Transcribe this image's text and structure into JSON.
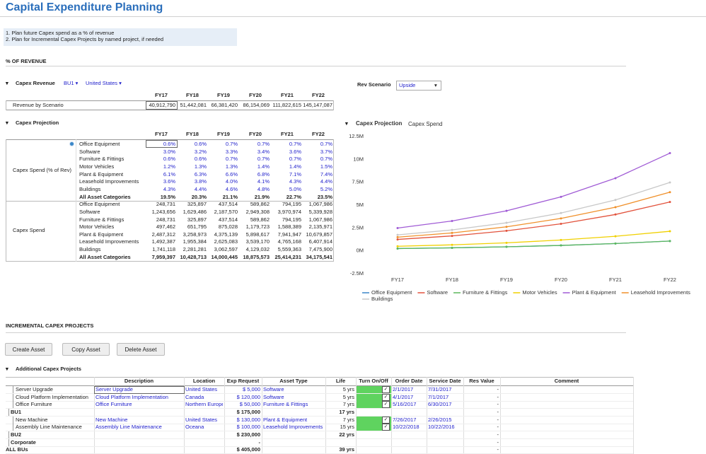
{
  "header": {
    "title": "Capital Expenditure Planning",
    "notes": [
      "1. Plan future Capex spend as a % of revenue",
      "2. Plan for Incremental Capex Projects by named project, if needed"
    ]
  },
  "pct_section": {
    "title": "% OF REVENUE"
  },
  "revenue": {
    "title": "Capex Revenue",
    "bu": "BU1",
    "region": "United States",
    "scenario_label": "Rev Scenario",
    "scenario": "Upside",
    "columns": [
      "FY17",
      "FY18",
      "FY19",
      "FY20",
      "FY21",
      "FY22"
    ],
    "rows": [
      {
        "label": "Revenue by Scenario",
        "values": [
          "40,912,790",
          "51,442,081",
          "66,381,420",
          "86,154,069",
          "111,822,615",
          "145,147,087"
        ]
      }
    ]
  },
  "projection": {
    "title": "Capex Projection",
    "columns": [
      "FY17",
      "FY18",
      "FY19",
      "FY20",
      "FY21",
      "FY22"
    ],
    "groups": [
      {
        "label": "Capex Spend (% of Rev)",
        "rows": [
          {
            "label": "Office Equipment",
            "values": [
              "0.6%",
              "0.6%",
              "0.7%",
              "0.7%",
              "0.7%",
              "0.7%"
            ]
          },
          {
            "label": "Software",
            "values": [
              "3.0%",
              "3.2%",
              "3.3%",
              "3.4%",
              "3.6%",
              "3.7%"
            ]
          },
          {
            "label": "Furniture & Fittings",
            "values": [
              "0.6%",
              "0.6%",
              "0.7%",
              "0.7%",
              "0.7%",
              "0.7%"
            ]
          },
          {
            "label": "Motor Vehicles",
            "values": [
              "1.2%",
              "1.3%",
              "1.3%",
              "1.4%",
              "1.4%",
              "1.5%"
            ]
          },
          {
            "label": "Plant & Equipment",
            "values": [
              "6.1%",
              "6.3%",
              "6.6%",
              "6.8%",
              "7.1%",
              "7.4%"
            ]
          },
          {
            "label": "Leasehold Improvements",
            "values": [
              "3.6%",
              "3.8%",
              "4.0%",
              "4.1%",
              "4.3%",
              "4.4%"
            ]
          },
          {
            "label": "Buildings",
            "values": [
              "4.3%",
              "4.4%",
              "4.6%",
              "4.8%",
              "5.0%",
              "5.2%"
            ]
          },
          {
            "label": "All Asset Categories",
            "values": [
              "19.5%",
              "20.3%",
              "21.1%",
              "21.9%",
              "22.7%",
              "23.5%"
            ]
          }
        ]
      },
      {
        "label": "Capex Spend",
        "rows": [
          {
            "label": "Office Equipment",
            "values": [
              "248,731",
              "325,897",
              "437,514",
              "589,862",
              "794,195",
              "1,067,986"
            ]
          },
          {
            "label": "Software",
            "values": [
              "1,243,656",
              "1,629,486",
              "2,187,570",
              "2,949,308",
              "3,970,974",
              "5,339,928"
            ]
          },
          {
            "label": "Furniture & Fittings",
            "values": [
              "248,731",
              "325,897",
              "437,514",
              "589,862",
              "794,195",
              "1,067,986"
            ]
          },
          {
            "label": "Motor Vehicles",
            "values": [
              "497,462",
              "651,795",
              "875,028",
              "1,179,723",
              "1,588,389",
              "2,135,971"
            ]
          },
          {
            "label": "Plant & Equipment",
            "values": [
              "2,487,312",
              "3,258,973",
              "4,375,139",
              "5,898,617",
              "7,941,947",
              "10,679,857"
            ]
          },
          {
            "label": "Leasehold Improvements",
            "values": [
              "1,492,387",
              "1,955,384",
              "2,625,083",
              "3,539,170",
              "4,765,168",
              "6,407,914"
            ]
          },
          {
            "label": "Buildings",
            "values": [
              "1,741,118",
              "2,281,281",
              "3,062,597",
              "4,129,032",
              "5,559,363",
              "7,475,900"
            ]
          },
          {
            "label": "All Asset Categories",
            "values": [
              "7,959,397",
              "10,428,713",
              "14,000,445",
              "18,875,573",
              "25,414,231",
              "34,175,541"
            ]
          }
        ]
      }
    ]
  },
  "chart_data": {
    "type": "line",
    "title": "Capex Projection",
    "subtitle": "Capex Spend",
    "categories": [
      "FY17",
      "FY18",
      "FY19",
      "FY20",
      "FY21",
      "FY22"
    ],
    "ylim": [
      -2500000,
      12500000
    ],
    "yticks": [
      {
        "value": -2500000,
        "label": "-2.5M"
      },
      {
        "value": 0,
        "label": "0M"
      },
      {
        "value": 2500000,
        "label": "2.5M"
      },
      {
        "value": 5000000,
        "label": "5M"
      },
      {
        "value": 7500000,
        "label": "7.5M"
      },
      {
        "value": 10000000,
        "label": "10M"
      },
      {
        "value": 12500000,
        "label": "12.5M"
      }
    ],
    "series": [
      {
        "name": "Office Equipment",
        "color": "#3a87c8",
        "values": [
          248731,
          325897,
          437514,
          589862,
          794195,
          1067986
        ]
      },
      {
        "name": "Software",
        "color": "#e2533d",
        "values": [
          1243656,
          1629486,
          2187570,
          2949308,
          3970974,
          5339928
        ]
      },
      {
        "name": "Furniture & Fittings",
        "color": "#5cb85c",
        "values": [
          248731,
          325897,
          437514,
          589862,
          794195,
          1067986
        ]
      },
      {
        "name": "Motor Vehicles",
        "color": "#f0d000",
        "values": [
          497462,
          651795,
          875028,
          1179723,
          1588389,
          2135971
        ]
      },
      {
        "name": "Plant & Equipment",
        "color": "#a05bd5",
        "values": [
          2487312,
          3258973,
          4375139,
          5898617,
          7941947,
          10679857
        ]
      },
      {
        "name": "Leasehold Improvements",
        "color": "#f0902a",
        "values": [
          1492387,
          1955384,
          2625083,
          3539170,
          4765168,
          6407914
        ]
      },
      {
        "name": "Buildings",
        "color": "#c8c8c8",
        "values": [
          1741118,
          2281281,
          3062597,
          4129032,
          5559363,
          7475900
        ]
      }
    ]
  },
  "incremental": {
    "title": "INCREMENTAL CAPEX PROJECTS",
    "buttons": [
      "Create Asset",
      "Copy Asset",
      "Delete Asset"
    ],
    "table_title": "Additional Capex Projects",
    "columns": [
      "Description",
      "Location",
      "Exp Request",
      "Asset Type",
      "Life",
      "Turn On/Off",
      "Order Date",
      "Service Date",
      "Res Value",
      "Comment"
    ],
    "rows": [
      {
        "name": "Server Upgrade",
        "description": "Server Upgrade",
        "location": "United States",
        "exp_request": "$ 5,000",
        "asset_type": "Software",
        "life": "5 yrs",
        "on": true,
        "order_date": "2/1/2017",
        "service_date": "7/31/2017",
        "res_value": "-"
      },
      {
        "name": "Cloud Platform Implementation",
        "description": "Cloud Platform Implementation",
        "location": "Canada",
        "exp_request": "$ 120,000",
        "asset_type": "Software",
        "life": "5 yrs",
        "on": true,
        "order_date": "4/1/2017",
        "service_date": "7/1/2017",
        "res_value": "-"
      },
      {
        "name": "Office Furniture",
        "description": "Office Furniture",
        "location": "Northern Europe",
        "exp_request": "$ 50,000",
        "asset_type": "Furniture & Fittings",
        "life": "7 yrs",
        "on": true,
        "order_date": "5/16/2017",
        "service_date": "6/30/2017",
        "res_value": "-"
      },
      {
        "name": "BU1",
        "exp_request": "$ 175,000",
        "life": "17 yrs",
        "res_value": "-"
      },
      {
        "name": "New Machine",
        "description": "New Machine",
        "location": "United States",
        "exp_request": "$ 130,000",
        "asset_type": "Plant & Equipment",
        "life": "7 yrs",
        "on": true,
        "order_date": "7/26/2017",
        "service_date": "2/26/2015",
        "res_value": "-"
      },
      {
        "name": "Assembly Line Maintenance",
        "description": "Assembly Line Maintenance",
        "location": "Oceana",
        "exp_request": "$ 100,000",
        "asset_type": "Leasehold Improvements",
        "life": "15 yrs",
        "on": true,
        "order_date": "10/22/2018",
        "service_date": "10/22/2016",
        "res_value": "-"
      },
      {
        "name": "BU2",
        "exp_request": "$ 230,000",
        "life": "22 yrs",
        "res_value": "-"
      },
      {
        "name": "Corporate",
        "exp_request": "-",
        "res_value": "-"
      },
      {
        "name": "ALL BUs",
        "exp_request": "$ 405,000",
        "life": "39 yrs",
        "res_value": "-"
      }
    ]
  }
}
